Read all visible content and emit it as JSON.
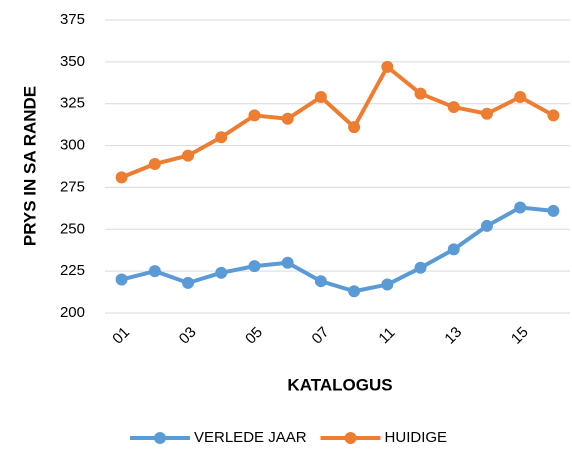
{
  "chart_data": {
    "type": "line",
    "categories": [
      "01",
      null,
      "03",
      null,
      "05",
      null,
      "07",
      null,
      "11",
      null,
      "13",
      null,
      "15",
      null
    ],
    "series": [
      {
        "name": "VERLEDE JAAR",
        "color": "#5b9bd5",
        "values": [
          220,
          225,
          218,
          224,
          228,
          230,
          219,
          213,
          217,
          227,
          238,
          252,
          263,
          261
        ]
      },
      {
        "name": "HUIDIGE",
        "color": "#ed7d31",
        "values": [
          281,
          289,
          294,
          305,
          318,
          316,
          329,
          311,
          347,
          331,
          323,
          319,
          329,
          318
        ]
      }
    ],
    "ylim": [
      200,
      375
    ],
    "yticks": [
      200,
      225,
      250,
      275,
      300,
      325,
      350,
      375
    ],
    "xlabel": "KATALOGUS",
    "ylabel": "PRYS IN SA RANDE",
    "grid": true,
    "legend": "bottom"
  }
}
